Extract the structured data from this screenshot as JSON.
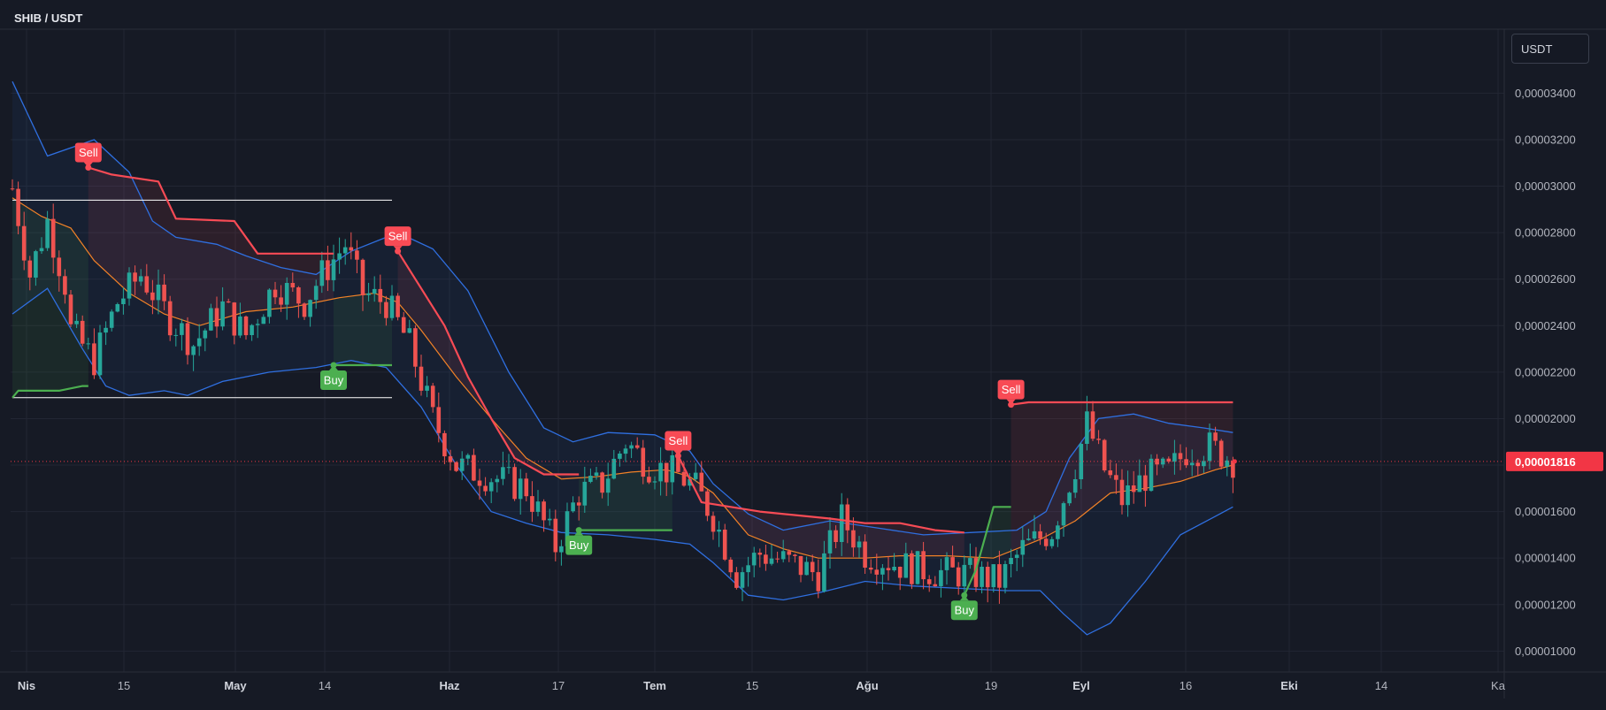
{
  "header": {
    "pair": "SHIB / USDT",
    "currency": "USDT"
  },
  "last_price": {
    "label": "0,00001816",
    "value": 1.816e-05,
    "color": "#f23645"
  },
  "colors": {
    "background": "#161a25",
    "grid": "#222633",
    "up": "#26a69a",
    "down": "#ef5350",
    "band": "#2f6fe0",
    "basis": "#f28227",
    "stop_sell": "#f84b55",
    "stop_buy": "#4caf50",
    "range_line": "#ffffff"
  },
  "chart_data": {
    "type": "candlestick",
    "title": "SHIB / USDT",
    "y_scale": "linear",
    "ylim": [
      9.1e-06,
      3.74e-05
    ],
    "grid": true,
    "x_axis": {
      "labels": [
        "Nis",
        "15",
        "May",
        "14",
        "Haz",
        "17",
        "Tem",
        "15",
        "Ağu",
        "19",
        "Eyl",
        "16",
        "Eki",
        "14",
        "Ka"
      ],
      "bold": [
        "Nis",
        "May",
        "Haz",
        "Tem",
        "Ağu",
        "Eyl",
        "Eki"
      ]
    },
    "y_axis": {
      "ticks": [
        {
          "label": "0,00003400",
          "value": 3.4e-05
        },
        {
          "label": "0,00003200",
          "value": 3.2e-05
        },
        {
          "label": "0,00003000",
          "value": 3e-05
        },
        {
          "label": "0,00002800",
          "value": 2.8e-05
        },
        {
          "label": "0,00002600",
          "value": 2.6e-05
        },
        {
          "label": "0,00002400",
          "value": 2.4e-05
        },
        {
          "label": "0,00002200",
          "value": 2.2e-05
        },
        {
          "label": "0,00002000",
          "value": 2e-05
        },
        {
          "label": "0,00001600",
          "value": 1.6e-05
        },
        {
          "label": "0,00001400",
          "value": 1.4e-05
        },
        {
          "label": "0,00001200",
          "value": 1.2e-05
        },
        {
          "label": "0,00001000",
          "value": 1e-05
        }
      ]
    },
    "price_keypoints": [
      [
        0,
        2.99e-05
      ],
      [
        3,
        2.62e-05
      ],
      [
        6,
        2.85e-05
      ],
      [
        9,
        2.58e-05
      ],
      [
        10,
        2.38e-05
      ],
      [
        14,
        2.25e-05
      ],
      [
        18,
        2.5e-05
      ],
      [
        22,
        2.62e-05
      ],
      [
        27,
        2.43e-05
      ],
      [
        31,
        2.32e-05
      ],
      [
        36,
        2.48e-05
      ],
      [
        40,
        2.36e-05
      ],
      [
        45,
        2.58e-05
      ],
      [
        50,
        2.5e-05
      ],
      [
        53,
        2.62e-05
      ],
      [
        57,
        2.75e-05
      ],
      [
        60,
        2.54e-05
      ],
      [
        64,
        2.5e-05
      ],
      [
        68,
        2.32e-05
      ],
      [
        72,
        2e-05
      ],
      [
        76,
        1.8e-05
      ],
      [
        82,
        1.75e-05
      ],
      [
        88,
        1.7e-05
      ],
      [
        93,
        1.45e-05
      ],
      [
        97,
        1.68e-05
      ],
      [
        101,
        1.72e-05
      ],
      [
        105,
        1.9e-05
      ],
      [
        109,
        1.8e-05
      ],
      [
        114,
        1.76e-05
      ],
      [
        117,
        1.7e-05
      ],
      [
        120,
        1.58e-05
      ],
      [
        124,
        1.33e-05
      ],
      [
        128,
        1.42e-05
      ],
      [
        133,
        1.38e-05
      ],
      [
        138,
        1.33e-05
      ],
      [
        142,
        1.57e-05
      ],
      [
        146,
        1.42e-05
      ],
      [
        152,
        1.37e-05
      ],
      [
        158,
        1.34e-05
      ],
      [
        164,
        1.33e-05
      ],
      [
        169,
        1.3e-05
      ],
      [
        173,
        1.44e-05
      ],
      [
        178,
        1.52e-05
      ],
      [
        182,
        1.8e-05
      ],
      [
        184,
        1.98e-05
      ],
      [
        187,
        1.78e-05
      ],
      [
        190,
        1.65e-05
      ],
      [
        194,
        1.75e-05
      ],
      [
        198,
        1.77e-05
      ],
      [
        201,
        1.86e-05
      ],
      [
        205,
        1.88e-05
      ],
      [
        209,
        1.82e-05
      ]
    ],
    "bands": {
      "upper": [
        [
          0,
          3.45e-05
        ],
        [
          6,
          3.13e-05
        ],
        [
          14,
          3.2e-05
        ],
        [
          20,
          3.06e-05
        ],
        [
          24,
          2.85e-05
        ],
        [
          28,
          2.78e-05
        ],
        [
          35,
          2.75e-05
        ],
        [
          40,
          2.7e-05
        ],
        [
          46,
          2.65e-05
        ],
        [
          52,
          2.62e-05
        ],
        [
          58,
          2.72e-05
        ],
        [
          66,
          2.8e-05
        ],
        [
          72,
          2.73e-05
        ],
        [
          78,
          2.55e-05
        ],
        [
          85,
          2.2e-05
        ],
        [
          91,
          1.96e-05
        ],
        [
          96,
          1.9e-05
        ],
        [
          102,
          1.94e-05
        ],
        [
          110,
          1.93e-05
        ],
        [
          116,
          1.86e-05
        ],
        [
          120,
          1.72e-05
        ],
        [
          126,
          1.59e-05
        ],
        [
          132,
          1.52e-05
        ],
        [
          140,
          1.56e-05
        ],
        [
          148,
          1.53e-05
        ],
        [
          156,
          1.5e-05
        ],
        [
          164,
          1.51e-05
        ],
        [
          172,
          1.52e-05
        ],
        [
          177,
          1.6e-05
        ],
        [
          181,
          1.83e-05
        ],
        [
          186,
          2e-05
        ],
        [
          192,
          2.02e-05
        ],
        [
          198,
          1.98e-05
        ],
        [
          204,
          1.96e-05
        ],
        [
          209,
          1.94e-05
        ]
      ],
      "basis": [
        [
          0,
          2.95e-05
        ],
        [
          5,
          2.87e-05
        ],
        [
          10,
          2.82e-05
        ],
        [
          14,
          2.68e-05
        ],
        [
          20,
          2.54e-05
        ],
        [
          26,
          2.45e-05
        ],
        [
          32,
          2.4e-05
        ],
        [
          40,
          2.46e-05
        ],
        [
          48,
          2.48e-05
        ],
        [
          56,
          2.52e-05
        ],
        [
          62,
          2.54e-05
        ],
        [
          66,
          2.5e-05
        ],
        [
          70,
          2.38e-05
        ],
        [
          76,
          2.18e-05
        ],
        [
          82,
          2e-05
        ],
        [
          88,
          1.83e-05
        ],
        [
          94,
          1.74e-05
        ],
        [
          100,
          1.75e-05
        ],
        [
          106,
          1.77e-05
        ],
        [
          112,
          1.78e-05
        ],
        [
          116,
          1.75e-05
        ],
        [
          120,
          1.68e-05
        ],
        [
          126,
          1.5e-05
        ],
        [
          132,
          1.44e-05
        ],
        [
          138,
          1.4e-05
        ],
        [
          146,
          1.4e-05
        ],
        [
          152,
          1.41e-05
        ],
        [
          160,
          1.41e-05
        ],
        [
          168,
          1.4e-05
        ],
        [
          176,
          1.48e-05
        ],
        [
          182,
          1.56e-05
        ],
        [
          188,
          1.68e-05
        ],
        [
          194,
          1.7e-05
        ],
        [
          200,
          1.73e-05
        ],
        [
          206,
          1.78e-05
        ],
        [
          209,
          1.8e-05
        ]
      ],
      "lower": [
        [
          0,
          2.45e-05
        ],
        [
          6,
          2.56e-05
        ],
        [
          12,
          2.3e-05
        ],
        [
          16,
          2.14e-05
        ],
        [
          20,
          2.1e-05
        ],
        [
          26,
          2.12e-05
        ],
        [
          30,
          2.1e-05
        ],
        [
          36,
          2.16e-05
        ],
        [
          44,
          2.2e-05
        ],
        [
          52,
          2.22e-05
        ],
        [
          58,
          2.25e-05
        ],
        [
          64,
          2.22e-05
        ],
        [
          70,
          2.05e-05
        ],
        [
          76,
          1.8e-05
        ],
        [
          82,
          1.6e-05
        ],
        [
          88,
          1.55e-05
        ],
        [
          94,
          1.51e-05
        ],
        [
          102,
          1.5e-05
        ],
        [
          110,
          1.48e-05
        ],
        [
          116,
          1.46e-05
        ],
        [
          120,
          1.38e-05
        ],
        [
          126,
          1.24e-05
        ],
        [
          132,
          1.22e-05
        ],
        [
          138,
          1.25e-05
        ],
        [
          146,
          1.3e-05
        ],
        [
          154,
          1.28e-05
        ],
        [
          162,
          1.27e-05
        ],
        [
          170,
          1.26e-05
        ],
        [
          176,
          1.26e-05
        ],
        [
          180,
          1.16e-05
        ],
        [
          184,
          1.07e-05
        ],
        [
          188,
          1.12e-05
        ],
        [
          194,
          1.3e-05
        ],
        [
          200,
          1.5e-05
        ],
        [
          206,
          1.58e-05
        ],
        [
          209,
          1.62e-05
        ]
      ]
    },
    "stop_line": {
      "segments": [
        {
          "side": "buy",
          "points": [
            [
              0,
              2.09e-05
            ],
            [
              1,
              2.12e-05
            ],
            [
              8,
              2.12e-05
            ],
            [
              12,
              2.14e-05
            ],
            [
              13,
              2.14e-05
            ]
          ]
        },
        {
          "side": "sell",
          "points": [
            [
              13,
              3.08e-05
            ],
            [
              17,
              3.05e-05
            ],
            [
              25,
              3.02e-05
            ],
            [
              28,
              2.86e-05
            ],
            [
              38,
              2.85e-05
            ],
            [
              42,
              2.71e-05
            ],
            [
              55,
              2.71e-05
            ]
          ]
        },
        {
          "side": "buy",
          "points": [
            [
              55,
              2.23e-05
            ],
            [
              65,
              2.23e-05
            ]
          ]
        },
        {
          "side": "sell",
          "points": [
            [
              66,
              2.72e-05
            ],
            [
              70,
              2.56e-05
            ],
            [
              74,
              2.4e-05
            ],
            [
              78,
              2.18e-05
            ],
            [
              82,
              2e-05
            ],
            [
              86,
              1.83e-05
            ],
            [
              91,
              1.76e-05
            ],
            [
              97,
              1.76e-05
            ]
          ]
        },
        {
          "side": "buy",
          "points": [
            [
              97,
              1.52e-05
            ],
            [
              113,
              1.52e-05
            ]
          ]
        },
        {
          "side": "sell",
          "points": [
            [
              114,
              1.84e-05
            ],
            [
              118,
              1.64e-05
            ],
            [
              128,
              1.6e-05
            ],
            [
              140,
              1.57e-05
            ],
            [
              146,
              1.55e-05
            ],
            [
              152,
              1.55e-05
            ],
            [
              158,
              1.52e-05
            ],
            [
              163,
              1.51e-05
            ]
          ]
        },
        {
          "side": "buy",
          "points": [
            [
              163,
              1.24e-05
            ],
            [
              165,
              1.35e-05
            ],
            [
              168,
              1.62e-05
            ],
            [
              171,
              1.62e-05
            ]
          ]
        },
        {
          "side": "sell",
          "points": [
            [
              171,
              2.06e-05
            ],
            [
              174,
              2.07e-05
            ],
            [
              209,
              2.07e-05
            ]
          ]
        }
      ]
    },
    "signals": [
      {
        "label": "Sell",
        "index": 13,
        "value": 3.08e-05,
        "side": "sell"
      },
      {
        "label": "Buy",
        "index": 55,
        "value": 2.23e-05,
        "side": "buy"
      },
      {
        "label": "Sell",
        "index": 66,
        "value": 2.72e-05,
        "side": "sell"
      },
      {
        "label": "Buy",
        "index": 97,
        "value": 1.52e-05,
        "side": "buy"
      },
      {
        "label": "Sell",
        "index": 114,
        "value": 1.84e-05,
        "side": "sell"
      },
      {
        "label": "Buy",
        "index": 163,
        "value": 1.24e-05,
        "side": "buy"
      },
      {
        "label": "Sell",
        "index": 171,
        "value": 2.06e-05,
        "side": "sell"
      }
    ],
    "range_lines": [
      {
        "start_index": 0,
        "end_index": 65,
        "value": 2.94e-05
      },
      {
        "start_index": 0,
        "end_index": 65,
        "value": 2.09e-05
      }
    ]
  }
}
